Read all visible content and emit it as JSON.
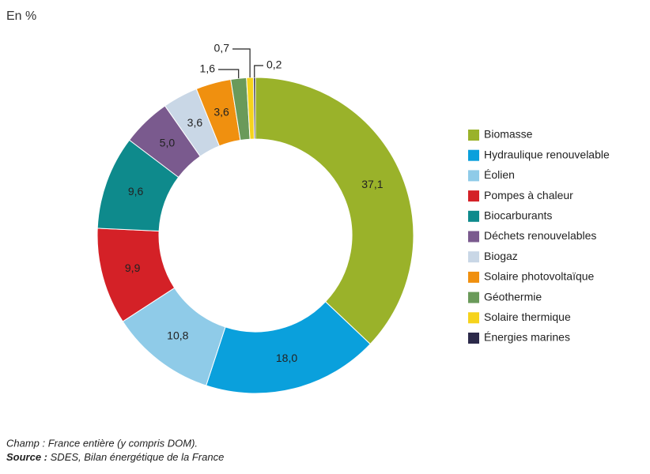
{
  "chart_data": {
    "type": "donut",
    "unit_label": "En %",
    "categories": [
      "Biomasse",
      "Hydraulique renouvelable",
      "Éolien",
      "Pompes à chaleur",
      "Biocarburants",
      "Déchets renouvelables",
      "Biogaz",
      "Solaire photovoltaïque",
      "Géothermie",
      "Solaire thermique",
      "Énergies marines"
    ],
    "values": [
      37.1,
      18.0,
      10.8,
      9.9,
      9.6,
      5.0,
      3.6,
      3.6,
      1.6,
      0.7,
      0.2
    ],
    "value_labels": [
      "37,1",
      "18,0",
      "10,8",
      "9,9",
      "9,6",
      "5,0",
      "3,6",
      "3,6",
      "1,6",
      "0,7",
      "0,2"
    ],
    "colors": [
      "#9ab22a",
      "#0aa0dc",
      "#8fcbe8",
      "#d42127",
      "#0e8a8c",
      "#7a5a8e",
      "#c9d7e6",
      "#f0900f",
      "#6a9a5a",
      "#f6d31c",
      "#2c2a4a"
    ],
    "legend": "right",
    "note": "Champ : France entière (y compris DOM).",
    "source_label": "Source :",
    "source": "SDES, Bilan énergétique de la France"
  }
}
